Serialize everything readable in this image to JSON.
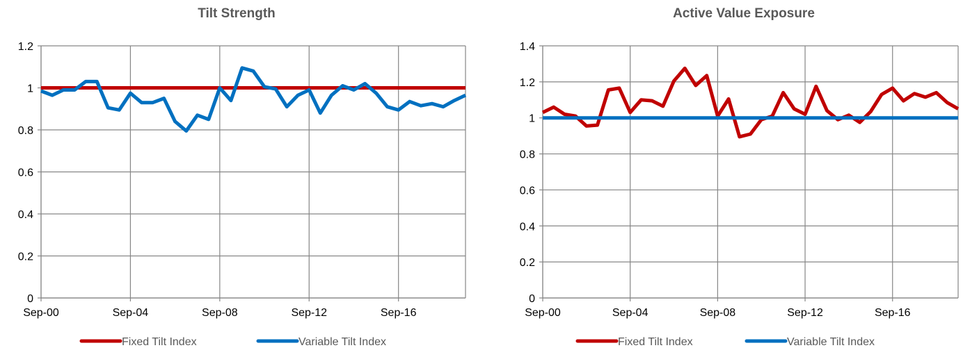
{
  "chart_data": [
    {
      "type": "line",
      "title": "Tilt Strength",
      "xlabel": "",
      "ylabel": "",
      "x_ticks": [
        "Sep-00",
        "Sep-04",
        "Sep-08",
        "Sep-12",
        "Sep-16"
      ],
      "y_ticks": [
        "0",
        "0.2",
        "0.4",
        "0.6",
        "0.8",
        "1",
        "1.2"
      ],
      "ylim": [
        0,
        1.2
      ],
      "grid": true,
      "legend_position": "bottom",
      "x": [
        "Sep-00",
        "Mar-01",
        "Sep-01",
        "Mar-02",
        "Sep-02",
        "Mar-03",
        "Sep-03",
        "Mar-04",
        "Sep-04",
        "Mar-05",
        "Sep-05",
        "Mar-06",
        "Sep-06",
        "Mar-07",
        "Sep-07",
        "Mar-08",
        "Sep-08",
        "Mar-09",
        "Sep-09",
        "Mar-10",
        "Sep-10",
        "Mar-11",
        "Sep-11",
        "Mar-12",
        "Sep-12",
        "Mar-13",
        "Sep-13",
        "Mar-14",
        "Sep-14",
        "Mar-15",
        "Sep-15",
        "Mar-16",
        "Sep-16",
        "Mar-17",
        "Sep-17",
        "Mar-18",
        "Sep-18",
        "Mar-19",
        "Sep-19"
      ],
      "series": [
        {
          "name": "Fixed Tilt Index",
          "color": "#c00000",
          "values": [
            1,
            1,
            1,
            1,
            1,
            1,
            1,
            1,
            1,
            1,
            1,
            1,
            1,
            1,
            1,
            1,
            1,
            1,
            1,
            1,
            1,
            1,
            1,
            1,
            1,
            1,
            1,
            1,
            1,
            1,
            1,
            1,
            1,
            1,
            1,
            1,
            1,
            1,
            1
          ]
        },
        {
          "name": "Variable Tilt Index",
          "color": "#0070c0",
          "values": [
            0.985,
            0.965,
            0.99,
            0.99,
            1.03,
            1.03,
            0.905,
            0.895,
            0.975,
            0.93,
            0.93,
            0.95,
            0.84,
            0.795,
            0.87,
            0.85,
            1.0,
            0.94,
            1.095,
            1.08,
            1.005,
            0.995,
            0.91,
            0.965,
            0.99,
            0.88,
            0.965,
            1.01,
            0.99,
            1.02,
            0.975,
            0.91,
            0.895,
            0.935,
            0.915,
            0.925,
            0.91,
            0.94,
            0.965
          ]
        }
      ]
    },
    {
      "type": "line",
      "title": "Active Value Exposure",
      "xlabel": "",
      "ylabel": "",
      "x_ticks": [
        "Sep-00",
        "Sep-04",
        "Sep-08",
        "Sep-12",
        "Sep-16"
      ],
      "y_ticks": [
        "0",
        "0.2",
        "0.4",
        "0.6",
        "0.8",
        "1",
        "1.2",
        "1.4"
      ],
      "ylim": [
        0,
        1.4
      ],
      "grid": true,
      "legend_position": "bottom",
      "x": [
        "Sep-00",
        "Mar-01",
        "Sep-01",
        "Mar-02",
        "Sep-02",
        "Mar-03",
        "Sep-03",
        "Mar-04",
        "Sep-04",
        "Mar-05",
        "Sep-05",
        "Mar-06",
        "Sep-06",
        "Mar-07",
        "Sep-07",
        "Mar-08",
        "Sep-08",
        "Mar-09",
        "Sep-09",
        "Mar-10",
        "Sep-10",
        "Mar-11",
        "Sep-11",
        "Mar-12",
        "Sep-12",
        "Mar-13",
        "Sep-13",
        "Mar-14",
        "Sep-14",
        "Mar-15",
        "Sep-15",
        "Mar-16",
        "Sep-16",
        "Mar-17",
        "Sep-17",
        "Mar-18",
        "Sep-18",
        "Mar-19",
        "Sep-19"
      ],
      "series": [
        {
          "name": "Fixed Tilt Index",
          "color": "#c00000",
          "values": [
            1.03,
            1.06,
            1.02,
            1.01,
            0.955,
            0.96,
            1.155,
            1.165,
            1.03,
            1.1,
            1.095,
            1.065,
            1.205,
            1.275,
            1.18,
            1.235,
            1.01,
            1.105,
            0.895,
            0.91,
            0.99,
            1.01,
            1.14,
            1.05,
            1.02,
            1.175,
            1.04,
            0.99,
            1.015,
            0.975,
            1.035,
            1.13,
            1.165,
            1.095,
            1.135,
            1.115,
            1.14,
            1.085,
            1.05
          ]
        },
        {
          "name": "Variable Tilt Index",
          "color": "#0070c0",
          "values": [
            1,
            1,
            1,
            1,
            1,
            1,
            1,
            1,
            1,
            1,
            1,
            1,
            1,
            1,
            1,
            1,
            1,
            1,
            1,
            1,
            1,
            1,
            1,
            1,
            1,
            1,
            1,
            1,
            1,
            1,
            1,
            1,
            1,
            1,
            1,
            1,
            1,
            1,
            1
          ]
        }
      ]
    }
  ]
}
